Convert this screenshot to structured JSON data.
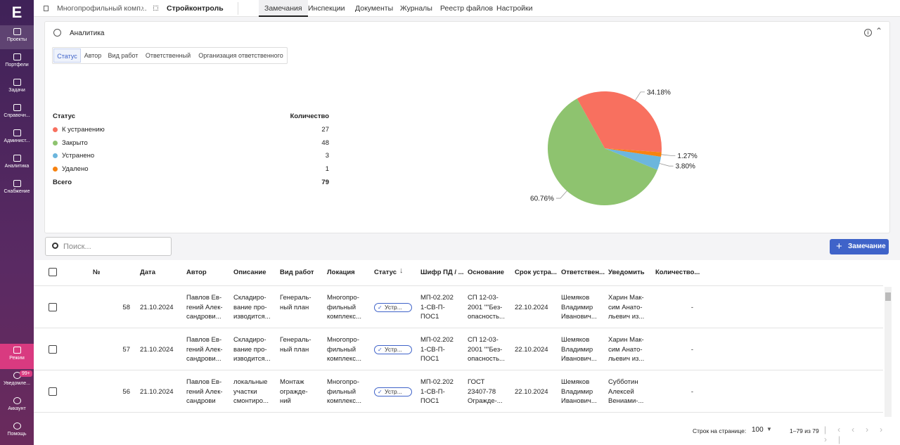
{
  "sidebar": {
    "logo": "E",
    "items": [
      "Проекты",
      "Портфели",
      "Задачи",
      "Справочн...",
      "Админист...",
      "Аналитика",
      "Снабжение"
    ],
    "bottom": [
      "Режим",
      "Уведомле...",
      "Аккаунт",
      "Помощь"
    ],
    "badge": "99+"
  },
  "breadcrumb": [
    "Многопрофильный комп...",
    "Стройконтроль"
  ],
  "tabs": [
    "Замечания",
    "Инспекции",
    "Документы",
    "Журналы",
    "Реестр файлов",
    "Настройки"
  ],
  "analytics": {
    "title": "Аналитика",
    "filters": [
      "Статус",
      "Автор",
      "Вид работ",
      "Ответственный",
      "Организация ответственного"
    ],
    "table": {
      "header": [
        "Статус",
        "Количество"
      ],
      "counts": [
        27,
        48,
        3,
        1
      ],
      "total_label": "Всего",
      "total": 79
    }
  },
  "chart_data": {
    "type": "pie",
    "categories": [
      "К устранению",
      "Закрыто",
      "Устранено",
      "Удалено"
    ],
    "values": [
      34.18,
      60.76,
      3.8,
      1.27
    ],
    "value_labels": [
      "34.18%",
      "60.76%",
      "3.80%",
      "1.27%"
    ],
    "colors": [
      "#f8705f",
      "#8ec36f",
      "#6cb6dd",
      "#f7820f"
    ]
  },
  "toolbar": {
    "search": "Поиск...",
    "button": "Замечание"
  },
  "issues": {
    "headers": [
      "№",
      "Дата",
      "Автор",
      "Описание",
      "Вид работ",
      "Локация",
      "Статус",
      "Шифр ПД / ...",
      "Основание",
      "Срок устра...",
      "Ответствен...",
      "Уведомить",
      "Количество..."
    ],
    "rows": [
      [
        "58",
        "21.10.2024",
        "Павлов Ев-\nгений Алек-\nсандрови...",
        "Складиро-\nвание про-\nизводится...",
        "Генераль-\nный план",
        "Многопро-\nфильный\nкомплекс...",
        "Устр...",
        "МП-02.202\n1-СВ-П-\nПОС1",
        "СП 12-03-\n2001 \"\"Без-\nопасность...",
        "22.10.2024",
        "Шемяков\nВладимир\nИванович...",
        "Харин Мак-\nсим Анато-\nльевич из...",
        "-"
      ],
      [
        "57",
        "21.10.2024",
        "Павлов Ев-\nгений Алек-\nсандрови...",
        "Складиро-\nвание про-\nизводится...",
        "Генераль-\nный план",
        "Многопро-\nфильный\nкомплекс...",
        "Устр...",
        "МП-02.202\n1-СВ-П-\nПОС1",
        "СП 12-03-\n2001 \"\"Без-\nопасность...",
        "22.10.2024",
        "Шемяков\nВладимир\nИванович...",
        "Харин Мак-\nсим Анато-\nльевич из...",
        "-"
      ],
      [
        "56",
        "21.10.2024",
        "Павлов Ев-\nгений Алек-\nсандрови",
        "локальные\nучастки\nсмонтиро...",
        "Монтаж\nогражде-\nний",
        "Многопро-\nфильный\nкомплекс...",
        "Устр...",
        "МП-02.202\n1-СВ-П-\nПОС1",
        "ГОСТ\n23407-78\nОгражде-...",
        "22.10.2024",
        "Шемяков\nВладимир\nИванович...",
        "Субботин\nАлексей\nВениами-...",
        "-"
      ]
    ]
  },
  "pagination": {
    "label": "Строк на странице:",
    "per_page": "100",
    "range": "1–79 из 79"
  }
}
